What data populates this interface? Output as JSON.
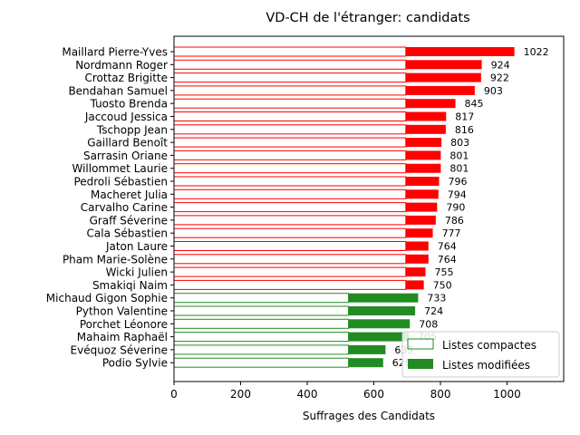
{
  "chart_data": {
    "type": "bar",
    "orientation": "horizontal",
    "title": "VD-CH de l'étranger: candidats",
    "xlabel": "Suffrages des Candidats",
    "ylabel": "",
    "xlim": [
      0,
      1170
    ],
    "xticks": [
      0,
      200,
      400,
      600,
      800,
      1000
    ],
    "grid": false,
    "legend_position": "lower-right",
    "legend": [
      {
        "label": "Listes compactes",
        "style": "outline"
      },
      {
        "label": "Listes modifiées",
        "style": "filled"
      }
    ],
    "colors": {
      "red": "#ff0000",
      "green": "#228b22"
    },
    "candidates": [
      {
        "name": "Maillard Pierre-Yves",
        "total": 1022,
        "compact": 696,
        "color": "red"
      },
      {
        "name": "Nordmann Roger",
        "total": 924,
        "compact": 696,
        "color": "red"
      },
      {
        "name": "Crottaz Brigitte",
        "total": 922,
        "compact": 696,
        "color": "red"
      },
      {
        "name": "Bendahan Samuel",
        "total": 903,
        "compact": 696,
        "color": "red"
      },
      {
        "name": "Tuosto Brenda",
        "total": 845,
        "compact": 696,
        "color": "red"
      },
      {
        "name": "Jaccoud Jessica",
        "total": 817,
        "compact": 696,
        "color": "red"
      },
      {
        "name": "Tschopp Jean",
        "total": 816,
        "compact": 696,
        "color": "red"
      },
      {
        "name": "Gaillard Benoît",
        "total": 803,
        "compact": 696,
        "color": "red"
      },
      {
        "name": "Sarrasin Oriane",
        "total": 801,
        "compact": 696,
        "color": "red"
      },
      {
        "name": "Willommet Laurie",
        "total": 801,
        "compact": 696,
        "color": "red"
      },
      {
        "name": "Pedroli Sébastien",
        "total": 796,
        "compact": 696,
        "color": "red"
      },
      {
        "name": "Macheret Julia",
        "total": 794,
        "compact": 696,
        "color": "red"
      },
      {
        "name": "Carvalho Carine",
        "total": 790,
        "compact": 696,
        "color": "red"
      },
      {
        "name": "Graff Séverine",
        "total": 786,
        "compact": 696,
        "color": "red"
      },
      {
        "name": "Cala Sébastien",
        "total": 777,
        "compact": 696,
        "color": "red"
      },
      {
        "name": "Jaton Laure",
        "total": 764,
        "compact": 696,
        "color": "red"
      },
      {
        "name": "Pham Marie-Solène",
        "total": 764,
        "compact": 696,
        "color": "red"
      },
      {
        "name": "Wicki Julien",
        "total": 755,
        "compact": 696,
        "color": "red"
      },
      {
        "name": "Smakiqi Naim",
        "total": 750,
        "compact": 696,
        "color": "red"
      },
      {
        "name": "Michaud Gigon Sophie",
        "total": 733,
        "compact": 524,
        "color": "green"
      },
      {
        "name": "Python Valentine",
        "total": 724,
        "compact": 524,
        "color": "green"
      },
      {
        "name": "Porchet Léonore",
        "total": 708,
        "compact": 524,
        "color": "green"
      },
      {
        "name": "Mahaim Raphaël",
        "total": 705,
        "compact": 524,
        "color": "green"
      },
      {
        "name": "Evéquoz Séverine",
        "total": 635,
        "compact": 524,
        "color": "green"
      },
      {
        "name": "Podio Sylvie",
        "total": 628,
        "compact": 524,
        "color": "green"
      }
    ]
  }
}
